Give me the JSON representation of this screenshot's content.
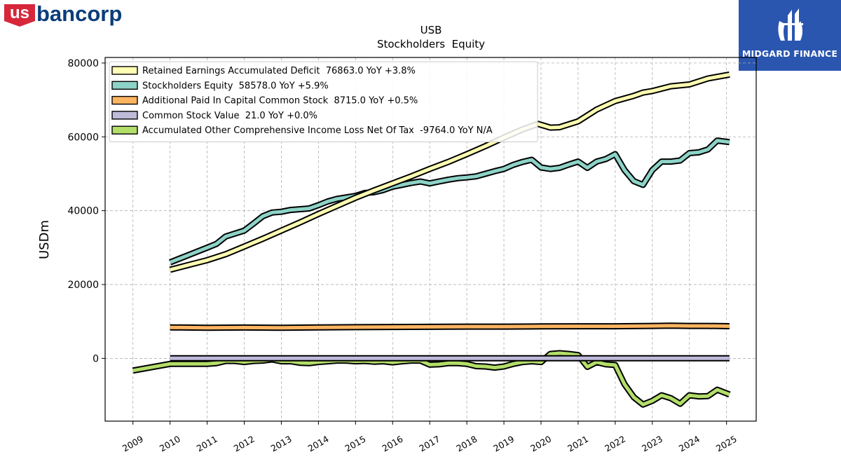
{
  "branding": {
    "left_logo": {
      "prefix": "us",
      "name": "bancorp",
      "prefix_color": "#d6273b",
      "name_color": "#0a3d7a"
    },
    "right_logo": {
      "text": "MIDGARD FINANCE",
      "bg_color": "#2a56b0"
    }
  },
  "chart_data": {
    "type": "line",
    "title": "USB",
    "subtitle": "Stockholders  Equity",
    "xlabel": "",
    "ylabel": "USDm",
    "ylim": [
      -17000,
      81500
    ],
    "xlim": [
      2008.25,
      2025.8
    ],
    "yticks": [
      0,
      20000,
      40000,
      60000,
      80000
    ],
    "xticks": [
      "2009",
      "2010",
      "2011",
      "2012",
      "2013",
      "2014",
      "2015",
      "2016",
      "2017",
      "2018",
      "2019",
      "2020",
      "2021",
      "2022",
      "2023",
      "2024",
      "2025"
    ],
    "grid": true,
    "legend_position": "top-left",
    "series": [
      {
        "name": "Retained Earnings Accumulated Deficit  76863.0 YoY +3.8%",
        "color": "#ffffb3",
        "points": [
          [
            2010.0,
            24000
          ],
          [
            2010.5,
            25300
          ],
          [
            2011.0,
            26600
          ],
          [
            2011.5,
            28200
          ],
          [
            2012.0,
            30300
          ],
          [
            2012.5,
            32400
          ],
          [
            2013.0,
            34600
          ],
          [
            2013.5,
            36800
          ],
          [
            2014.0,
            39100
          ],
          [
            2014.5,
            41300
          ],
          [
            2015.0,
            43500
          ],
          [
            2015.5,
            45500
          ],
          [
            2016.0,
            47400
          ],
          [
            2016.5,
            49300
          ],
          [
            2017.0,
            51300
          ],
          [
            2017.5,
            53200
          ],
          [
            2018.0,
            55300
          ],
          [
            2018.5,
            57500
          ],
          [
            2019.0,
            59800
          ],
          [
            2019.5,
            62000
          ],
          [
            2019.92,
            63500
          ],
          [
            2020.25,
            62500
          ],
          [
            2020.5,
            62600
          ],
          [
            2021.0,
            64200
          ],
          [
            2021.5,
            67400
          ],
          [
            2022.0,
            69700
          ],
          [
            2022.5,
            71100
          ],
          [
            2022.75,
            72000
          ],
          [
            2023.0,
            72400
          ],
          [
            2023.5,
            73700
          ],
          [
            2024.0,
            74200
          ],
          [
            2024.5,
            75800
          ],
          [
            2025.08,
            76863
          ]
        ]
      },
      {
        "name": "Stockholders Equity  58578.0 YoY +5.9%",
        "color": "#8dd3c7",
        "points": [
          [
            2010.0,
            26000
          ],
          [
            2010.5,
            28000
          ],
          [
            2011.0,
            30000
          ],
          [
            2011.25,
            31000
          ],
          [
            2011.5,
            33000
          ],
          [
            2012.0,
            34600
          ],
          [
            2012.25,
            36500
          ],
          [
            2012.5,
            38500
          ],
          [
            2012.75,
            39500
          ],
          [
            2013.0,
            39700
          ],
          [
            2013.25,
            40200
          ],
          [
            2013.75,
            40600
          ],
          [
            2014.0,
            41500
          ],
          [
            2014.25,
            42500
          ],
          [
            2014.5,
            43200
          ],
          [
            2014.75,
            43600
          ],
          [
            2015.0,
            44000
          ],
          [
            2015.25,
            44800
          ],
          [
            2015.5,
            45000
          ],
          [
            2015.75,
            45600
          ],
          [
            2016.0,
            46500
          ],
          [
            2016.25,
            47000
          ],
          [
            2016.5,
            47500
          ],
          [
            2016.75,
            47900
          ],
          [
            2017.0,
            47400
          ],
          [
            2017.25,
            47900
          ],
          [
            2017.5,
            48400
          ],
          [
            2017.75,
            48800
          ],
          [
            2018.0,
            49000
          ],
          [
            2018.25,
            49300
          ],
          [
            2018.5,
            50000
          ],
          [
            2018.75,
            50700
          ],
          [
            2019.0,
            51300
          ],
          [
            2019.25,
            52400
          ],
          [
            2019.5,
            53200
          ],
          [
            2019.75,
            53800
          ],
          [
            2020.0,
            51700
          ],
          [
            2020.25,
            51300
          ],
          [
            2020.5,
            51600
          ],
          [
            2020.75,
            52500
          ],
          [
            2021.0,
            53300
          ],
          [
            2021.25,
            51600
          ],
          [
            2021.5,
            53300
          ],
          [
            2021.75,
            54000
          ],
          [
            2022.0,
            55300
          ],
          [
            2022.25,
            51000
          ],
          [
            2022.5,
            48000
          ],
          [
            2022.75,
            47000
          ],
          [
            2023.0,
            51000
          ],
          [
            2023.25,
            53300
          ],
          [
            2023.5,
            53300
          ],
          [
            2023.75,
            53600
          ],
          [
            2024.0,
            55600
          ],
          [
            2024.25,
            55800
          ],
          [
            2024.5,
            56600
          ],
          [
            2024.75,
            59000
          ],
          [
            2025.08,
            58578
          ]
        ]
      },
      {
        "name": "Additional Paid In Capital Common Stock  8715.0 YoY +0.5%",
        "color": "#fdb462",
        "points": [
          [
            2010.0,
            8400
          ],
          [
            2011.0,
            8300
          ],
          [
            2012.0,
            8350
          ],
          [
            2013.0,
            8300
          ],
          [
            2014.0,
            8380
          ],
          [
            2015.0,
            8450
          ],
          [
            2016.0,
            8500
          ],
          [
            2017.0,
            8550
          ],
          [
            2018.0,
            8600
          ],
          [
            2019.0,
            8600
          ],
          [
            2020.0,
            8650
          ],
          [
            2021.0,
            8700
          ],
          [
            2022.0,
            8700
          ],
          [
            2023.0,
            8800
          ],
          [
            2023.5,
            8850
          ],
          [
            2024.0,
            8800
          ],
          [
            2024.5,
            8800
          ],
          [
            2025.08,
            8715
          ]
        ]
      },
      {
        "name": "Common Stock Value  21.0 YoY +0.0%",
        "color": "#bebada",
        "points": [
          [
            2010.0,
            21
          ],
          [
            2025.08,
            21
          ]
        ]
      },
      {
        "name": "Accumulated Other Comprehensive Income Loss Net Of Tax  -9764.0 YoY N/A",
        "color": "#b3de69",
        "points": [
          [
            2009.0,
            -3300
          ],
          [
            2010.0,
            -1500
          ],
          [
            2011.0,
            -1500
          ],
          [
            2011.25,
            -1300
          ],
          [
            2011.5,
            -700
          ],
          [
            2011.75,
            -700
          ],
          [
            2012.0,
            -1000
          ],
          [
            2012.25,
            -700
          ],
          [
            2012.5,
            -600
          ],
          [
            2012.75,
            -300
          ],
          [
            2013.0,
            -800
          ],
          [
            2013.25,
            -800
          ],
          [
            2013.5,
            -1200
          ],
          [
            2013.75,
            -1300
          ],
          [
            2014.0,
            -1000
          ],
          [
            2014.25,
            -800
          ],
          [
            2014.5,
            -600
          ],
          [
            2014.75,
            -600
          ],
          [
            2015.0,
            -800
          ],
          [
            2015.25,
            -700
          ],
          [
            2015.5,
            -900
          ],
          [
            2015.75,
            -800
          ],
          [
            2016.0,
            -1100
          ],
          [
            2016.25,
            -800
          ],
          [
            2016.5,
            -600
          ],
          [
            2016.75,
            -600
          ],
          [
            2017.0,
            -1700
          ],
          [
            2017.25,
            -1600
          ],
          [
            2017.5,
            -1300
          ],
          [
            2017.75,
            -1300
          ],
          [
            2018.0,
            -1500
          ],
          [
            2018.25,
            -2100
          ],
          [
            2018.5,
            -2200
          ],
          [
            2018.75,
            -2500
          ],
          [
            2019.0,
            -2200
          ],
          [
            2019.25,
            -1500
          ],
          [
            2019.5,
            -1000
          ],
          [
            2019.75,
            -800
          ],
          [
            2020.0,
            -1000
          ],
          [
            2020.25,
            1200
          ],
          [
            2020.5,
            1400
          ],
          [
            2020.75,
            1200
          ],
          [
            2021.0,
            900
          ],
          [
            2021.25,
            -2300
          ],
          [
            2021.5,
            -1000
          ],
          [
            2021.75,
            -1600
          ],
          [
            2022.0,
            -1800
          ],
          [
            2022.25,
            -7000
          ],
          [
            2022.5,
            -10500
          ],
          [
            2022.75,
            -12500
          ],
          [
            2023.0,
            -11500
          ],
          [
            2023.25,
            -10000
          ],
          [
            2023.5,
            -10800
          ],
          [
            2023.75,
            -12300
          ],
          [
            2024.0,
            -10000
          ],
          [
            2024.25,
            -10300
          ],
          [
            2024.5,
            -10200
          ],
          [
            2024.75,
            -8500
          ],
          [
            2025.08,
            -9764
          ]
        ]
      }
    ]
  }
}
